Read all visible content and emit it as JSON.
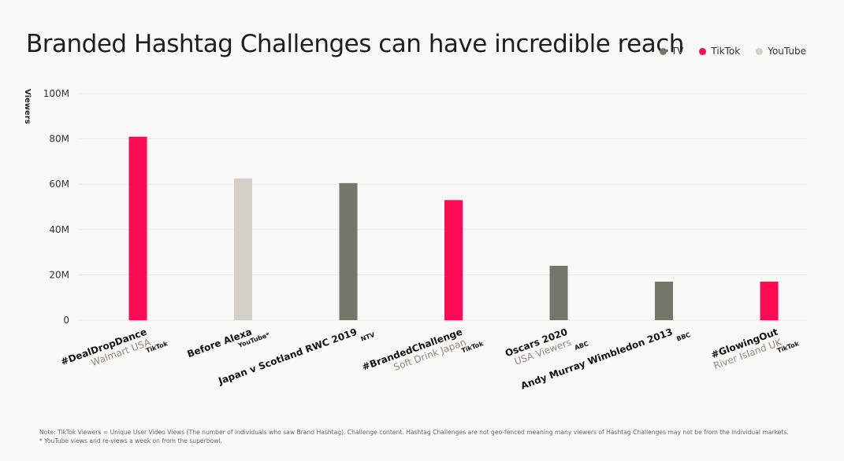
{
  "title": "Branded Hashtag Challenges can have incredible reach",
  "legend": [
    {
      "label": "TV",
      "color": "#75766a"
    },
    {
      "label": "TikTok",
      "color": "#fe0a55"
    },
    {
      "label": "YouTube",
      "color": "#d3cfc9"
    }
  ],
  "notes": {
    "line1": "Note: TikTok Viewers = Unique User Video Views (The number of individuals who saw Brand Hashtag). Challenge content. Hashtag Challenges are not geo-fenced meaning many viewers of Hashtag Challenges may not be from the individual markets.",
    "line2": "* YouTube views and re-views a week on from the superbowl."
  },
  "chart_data": {
    "type": "bar",
    "title": "Branded Hashtag Challenges can have incredible reach",
    "ylabel": "Viewers",
    "xlabel": "",
    "ylim": [
      0,
      100
    ],
    "y_unit": "M",
    "y_ticks": [
      "0",
      "20M",
      "40M",
      "60M",
      "80M",
      "100M"
    ],
    "y_tick_values": [
      0,
      20,
      40,
      60,
      80,
      100
    ],
    "grid": true,
    "legend_position": "top-right",
    "categories": [
      "#DealDropDance Walmart USA",
      "Before Alexa",
      "Japan v Scotland RWC 2019",
      "#BrandedChallenge Soft Drink Japan",
      "Oscars 2020 USA Viewers",
      "Andy Murray Wimbledon 2013",
      "#GlowingOut River Island UK"
    ],
    "values": [
      81,
      62.5,
      60.5,
      53,
      24,
      17,
      17
    ],
    "series_type": [
      "TikTok",
      "YouTube",
      "TV",
      "TikTok",
      "TV",
      "TV",
      "TikTok"
    ],
    "labels": [
      {
        "main": "#DealDropDance",
        "sub": "Walmart USA",
        "source": "TikTok"
      },
      {
        "main": "Before Alexa",
        "sub": "",
        "source": "YouTube*"
      },
      {
        "main": "Japan v Scotland RWC 2019",
        "sub": "",
        "source": "NTV"
      },
      {
        "main": "#BrandedChallenge",
        "sub": "Soft Drink Japan",
        "source": "TikTok"
      },
      {
        "main": "Oscars 2020",
        "sub": "USA Viewers",
        "source": "ABC"
      },
      {
        "main": "Andy Murray Wimbledon 2013",
        "sub": "",
        "source": "BBC"
      },
      {
        "main": "#GlowingOut",
        "sub": "River Island UK",
        "source": "TikTok"
      }
    ]
  }
}
